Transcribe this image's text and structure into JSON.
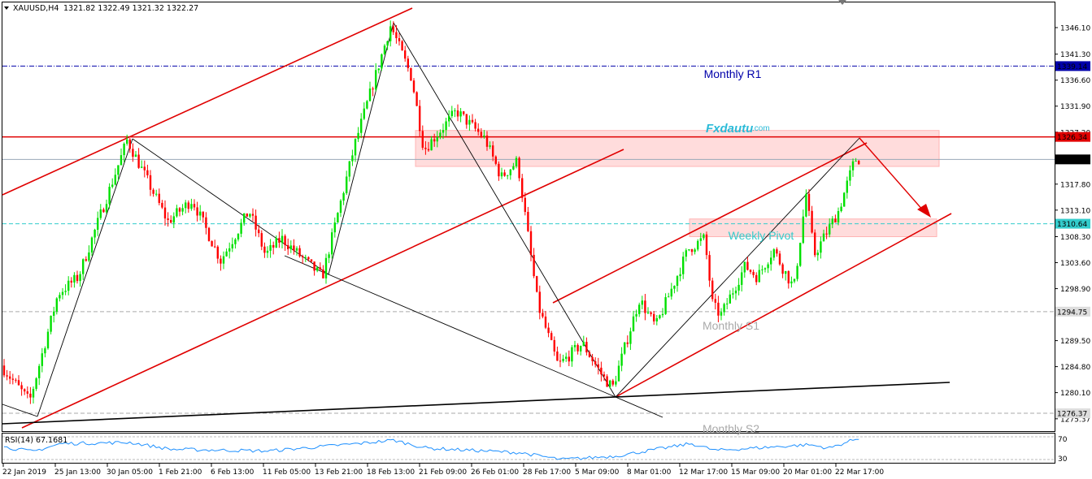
{
  "header": {
    "symbol": "XAUUSD,H4",
    "ohlc": "1321.82 1322.49 1321.32 1322.27"
  },
  "watermark": {
    "brand": "Fxdautu",
    "suffix": ".com"
  },
  "rsi": {
    "label": "RSI(14) 67.1681",
    "period": 14,
    "value": 67.1681,
    "levels": [
      70,
      30
    ],
    "tick_labels": [
      "70",
      "30"
    ]
  },
  "chart_data": {
    "type": "candlestick",
    "symbol": "XAUUSD",
    "timeframe": "H4",
    "ylim": [
      1275.3,
      1349.2
    ],
    "y_ticks": [
      "1346.10",
      "1341.30",
      "1336.60",
      "1331.90",
      "1327.20",
      "1322.27",
      "1317.80",
      "1313.10",
      "1308.30",
      "1303.60",
      "1298.90",
      "1294.75",
      "1289.50",
      "1284.80",
      "1280.10",
      "1275.37"
    ],
    "x_tick_labels": [
      "22 Jan 2019",
      "25 Jan 13:00",
      "30 Jan 05:00",
      "1 Feb 21:00",
      "6 Feb 13:00",
      "11 Feb 05:00",
      "13 Feb 21:00",
      "18 Feb 13:00",
      "21 Feb 09:00",
      "26 Feb 01:00",
      "28 Feb 17:00",
      "5 Mar 09:00",
      "8 Mar 01:00",
      "12 Mar 17:00",
      "15 Mar 09:00",
      "20 Mar 01:00",
      "22 Mar 17:00"
    ],
    "colors": {
      "up": "#00e000",
      "down": "#ff0000",
      "accent": "#e00000",
      "monthly_r1": "#0000aa",
      "weekly_pivot": "#33cccc",
      "support": "#aaaaaa"
    },
    "levels": [
      {
        "label": "Monthly R1",
        "price": 1339.14,
        "value_label": "1339.14",
        "style": "dash-dot",
        "color": "#0000aa"
      },
      {
        "label": "",
        "price": 1326.34,
        "value_label": "1326.34",
        "style": "solid",
        "color": "#e00000"
      },
      {
        "label": "",
        "price": 1322.27,
        "value_label": "1322.27",
        "style": "solid",
        "color": "#9aa8b8"
      },
      {
        "label": "Weekly Pivot",
        "price": 1310.64,
        "value_label": "1310.64",
        "style": "dashed",
        "color": "#33cccc"
      },
      {
        "label": "Monthly S1",
        "price": 1294.75,
        "value_label": "1294.75",
        "style": "dashed",
        "color": "#aaaaaa"
      },
      {
        "label": "Monthly S2",
        "price": 1276.37,
        "value_label": "1276.37",
        "style": "dashed",
        "color": "#aaaaaa"
      }
    ],
    "zones": [
      {
        "name": "resistance-zone",
        "from": "21 Feb 09:00",
        "to": "after 22 Mar 17:00",
        "price_low": 1321.0,
        "price_high": 1327.5
      },
      {
        "name": "pivot-zone",
        "from": "12 Mar 17:00",
        "to": "after 22 Mar 17:00",
        "price_low": 1308.3,
        "price_high": 1311.5
      }
    ]
  }
}
